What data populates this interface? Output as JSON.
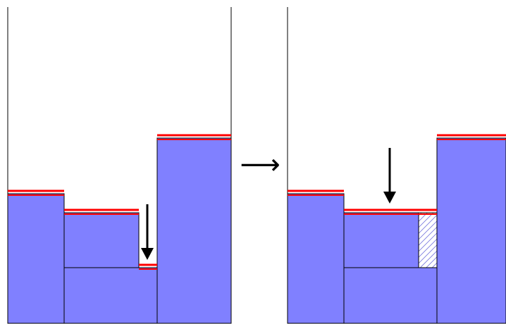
{
  "colors": {
    "block_fill": "#8080ff",
    "block_stroke": "#000000",
    "level_line": "#ff0000",
    "arrow": "#000000",
    "hatch": "#3333cc"
  },
  "icons": {
    "transition": "long-right-arrow-icon",
    "drop": "down-arrow-icon",
    "filled_gap": "hatched-cell"
  },
  "transition_glyph": "⟶",
  "left_panel": {
    "name": "before-state",
    "blocks": [
      "left-column",
      "middle-shelf",
      "bottom-slab",
      "right-column"
    ],
    "red_levels": [
      "left-column-top",
      "middle-shelf-top",
      "gap-bottom",
      "right-column-top"
    ],
    "drop_arrow_target": "gap"
  },
  "right_panel": {
    "name": "after-state",
    "blocks": [
      "left-column",
      "middle-shelf",
      "bottom-slab",
      "right-column",
      "filled-gap"
    ],
    "red_levels": [
      "left-column-top",
      "merged-shelf-top",
      "right-column-top"
    ],
    "drop_arrow_target": "merged-shelf"
  }
}
